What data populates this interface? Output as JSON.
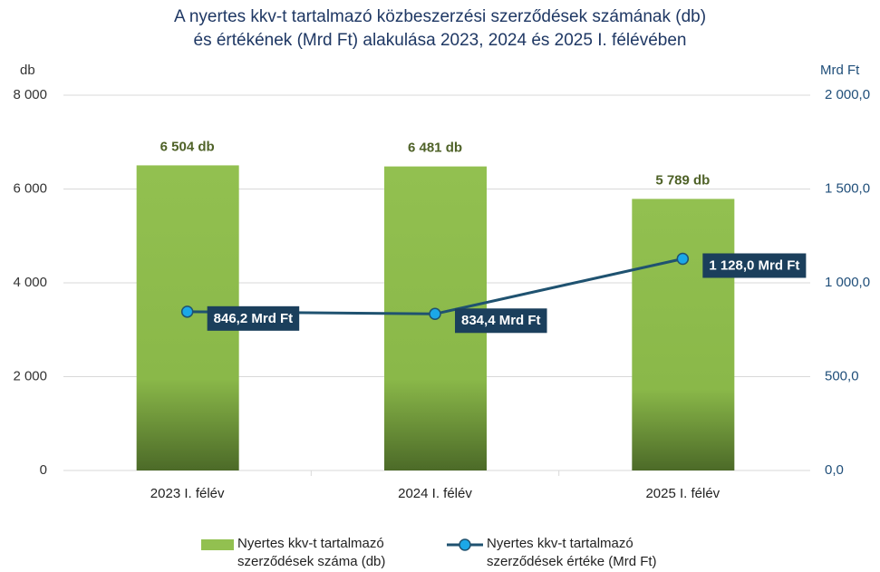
{
  "chart_data": {
    "type": "bar",
    "title": [
      "A nyertes kkv-t tartalmazó közbeszerzési szerződések számának (db)",
      "és értékének (Mrd Ft) alakulása 2023, 2024 és 2025 I. félévében"
    ],
    "ylabel": "db",
    "y2label": "Mrd Ft",
    "categories": [
      "2023 I. félév",
      "2024 I. félév",
      "2025 I. félév"
    ],
    "ylim": [
      0,
      8000
    ],
    "yticks": [
      0,
      {
        "value": 2000,
        "label": "2 000"
      },
      {
        "value": 4000,
        "label": "4 000"
      },
      {
        "value": 6000,
        "label": "6 000"
      },
      {
        "value": 8000,
        "label": "8 000"
      }
    ],
    "y2lim": [
      0,
      2000
    ],
    "y2ticks": [
      {
        "value": 0,
        "label": "0,0"
      },
      {
        "value": 500,
        "label": "500,0"
      },
      {
        "value": 1000,
        "label": "1 000,0"
      },
      {
        "value": 1500,
        "label": "1 500,0"
      },
      {
        "value": 2000,
        "label": "2 000,0"
      }
    ],
    "grid": true,
    "series": [
      {
        "name": "Nyertes kkv-t tartalmazó szerződések száma (db)",
        "type": "bar",
        "color": "#92c050",
        "values": [
          6504,
          6481,
          5789
        ],
        "value_labels": [
          "6 504 db",
          "6 481 db",
          "5 789 db"
        ]
      },
      {
        "name": "Nyertes kkv-t tartalmazó szerződések értéke (Mrd Ft)",
        "type": "line",
        "axis": "y2",
        "color": "#1f5270",
        "values": [
          846.2,
          834.4,
          1128.0
        ],
        "value_labels": [
          "846,2 Mrd Ft",
          "834,4 Mrd Ft",
          "1 128,0 Mrd Ft"
        ]
      }
    ]
  }
}
